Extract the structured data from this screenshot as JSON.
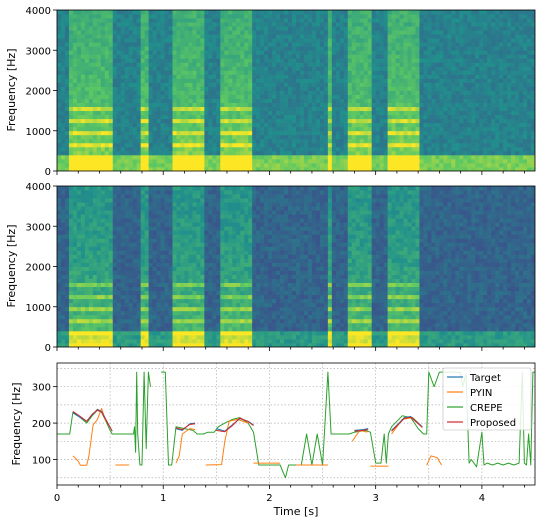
{
  "chart_data": [
    {
      "type": "heatmap",
      "ylabel": "Frequency [Hz]",
      "ylim": [
        0,
        4000
      ],
      "xlim": [
        0,
        4.5
      ],
      "yticks": [
        0,
        1000,
        2000,
        3000,
        4000
      ],
      "xticks": [
        0,
        1,
        2,
        3,
        4
      ],
      "colormap": "viridis",
      "voiced_segments": [
        [
          0.12,
          0.52
        ],
        [
          0.78,
          0.86
        ],
        [
          1.08,
          1.4
        ],
        [
          1.55,
          1.85
        ],
        [
          2.55,
          2.6
        ],
        [
          2.75,
          2.95
        ],
        [
          3.12,
          3.42
        ]
      ]
    },
    {
      "type": "heatmap",
      "ylabel": "Frequency [Hz]",
      "ylim": [
        0,
        4000
      ],
      "xlim": [
        0,
        4.5
      ],
      "yticks": [
        0,
        1000,
        2000,
        3000,
        4000
      ],
      "xticks": [
        0,
        1,
        2,
        3,
        4
      ],
      "colormap": "viridis",
      "voiced_segments": [
        [
          0.12,
          0.52
        ],
        [
          0.78,
          0.86
        ],
        [
          1.08,
          1.4
        ],
        [
          1.55,
          1.85
        ],
        [
          2.55,
          2.6
        ],
        [
          2.75,
          2.95
        ],
        [
          3.12,
          3.42
        ]
      ]
    },
    {
      "type": "line",
      "xlabel": "Time [s]",
      "ylabel": "Frequency [Hz]",
      "xlim": [
        0,
        4.5
      ],
      "ylim": [
        30,
        365
      ],
      "xticks": [
        0,
        1,
        2,
        3,
        4
      ],
      "yticks": [
        100,
        200,
        300
      ],
      "grid": true,
      "legend_position": "top-right",
      "series": [
        {
          "name": "Target",
          "color": "#1f77b4",
          "segments": [
            [
              [
                0.15,
                228
              ],
              [
                0.22,
                215
              ],
              [
                0.28,
                205
              ],
              [
                0.33,
                222
              ],
              [
                0.38,
                238
              ],
              [
                0.42,
                232
              ],
              [
                0.47,
                205
              ],
              [
                0.52,
                178
              ]
            ],
            [
              [
                1.12,
                185
              ],
              [
                1.18,
                180
              ],
              [
                1.25,
                198
              ],
              [
                1.3,
                200
              ]
            ],
            [
              [
                1.5,
                185
              ],
              [
                1.58,
                178
              ],
              [
                1.65,
                195
              ],
              [
                1.72,
                212
              ],
              [
                1.8,
                205
              ],
              [
                1.85,
                195
              ]
            ],
            [
              [
                2.8,
                180
              ],
              [
                2.88,
                182
              ],
              [
                2.93,
                185
              ]
            ],
            [
              [
                3.15,
                180
              ],
              [
                3.22,
                200
              ],
              [
                3.27,
                215
              ],
              [
                3.33,
                218
              ],
              [
                3.4,
                200
              ],
              [
                3.44,
                190
              ]
            ]
          ]
        },
        {
          "name": "PYIN",
          "color": "#ff7f0e",
          "segments": [
            [
              [
                0.15,
                110
              ],
              [
                0.17,
                105
              ],
              [
                0.2,
                95
              ],
              [
                0.22,
                84
              ],
              [
                0.28,
                84
              ],
              [
                0.3,
                110
              ],
              [
                0.34,
                195
              ],
              [
                0.38,
                210
              ],
              [
                0.42,
                240
              ],
              [
                0.46,
                205
              ]
            ],
            [
              [
                0.55,
                85
              ],
              [
                0.68,
                85
              ]
            ],
            [
              [
                1.12,
                90
              ],
              [
                1.15,
                110
              ],
              [
                1.18,
                170
              ],
              [
                1.25,
                185
              ],
              [
                1.3,
                182
              ]
            ],
            [
              [
                1.4,
                85
              ],
              [
                1.55,
                86
              ],
              [
                1.58,
                150
              ],
              [
                1.62,
                205
              ],
              [
                1.7,
                210
              ],
              [
                1.8,
                200
              ]
            ],
            [
              [
                1.85,
                90
              ],
              [
                2.1,
                90
              ]
            ],
            [
              [
                2.25,
                85
              ],
              [
                2.55,
                85
              ]
            ],
            [
              [
                2.78,
                150
              ],
              [
                2.85,
                180
              ],
              [
                2.92,
                175
              ]
            ],
            [
              [
                2.95,
                82
              ],
              [
                3.12,
                82
              ]
            ],
            [
              [
                3.15,
                170
              ],
              [
                3.25,
                210
              ],
              [
                3.35,
                215
              ],
              [
                3.42,
                195
              ]
            ],
            [
              [
                3.48,
                84
              ],
              [
                3.52,
                110
              ],
              [
                3.58,
                105
              ],
              [
                3.62,
                85
              ]
            ]
          ]
        },
        {
          "name": "CREPE",
          "color": "#2ca02c",
          "segments": [
            [
              [
                0.0,
                170
              ],
              [
                0.12,
                170
              ],
              [
                0.15,
                230
              ],
              [
                0.22,
                215
              ],
              [
                0.28,
                200
              ],
              [
                0.33,
                220
              ],
              [
                0.38,
                235
              ],
              [
                0.42,
                230
              ],
              [
                0.46,
                205
              ],
              [
                0.5,
                180
              ],
              [
                0.52,
                170
              ],
              [
                0.72,
                170
              ],
              [
                0.73,
                190
              ],
              [
                0.74,
                120
              ],
              [
                0.75,
                340
              ],
              [
                0.76,
                170
              ],
              [
                0.78,
                85
              ],
              [
                0.8,
                85
              ],
              [
                0.82,
                340
              ],
              [
                0.84,
                130
              ],
              [
                0.86,
                340
              ],
              [
                0.88,
                300
              ]
            ],
            [
              [
                0.98,
                340
              ],
              [
                1.02,
                340
              ],
              [
                1.05,
                85
              ],
              [
                1.08,
                85
              ],
              [
                1.12,
                190
              ],
              [
                1.2,
                185
              ],
              [
                1.28,
                180
              ],
              [
                1.32,
                170
              ],
              [
                1.38,
                170
              ],
              [
                1.42,
                175
              ],
              [
                1.48,
                175
              ],
              [
                1.52,
                190
              ],
              [
                1.58,
                200
              ],
              [
                1.65,
                210
              ],
              [
                1.72,
                215
              ],
              [
                1.8,
                200
              ],
              [
                1.85,
                175
              ],
              [
                1.9,
                85
              ],
              [
                2.0,
                85
              ],
              [
                2.05,
                85
              ],
              [
                2.1,
                85
              ],
              [
                2.15,
                50
              ],
              [
                2.18,
                85
              ],
              [
                2.3,
                85
              ],
              [
                2.35,
                170
              ],
              [
                2.4,
                85
              ],
              [
                2.45,
                170
              ],
              [
                2.5,
                85
              ],
              [
                2.55,
                340
              ],
              [
                2.58,
                170
              ],
              [
                2.65,
                170
              ],
              [
                2.75,
                170
              ],
              [
                2.8,
                175
              ],
              [
                2.9,
                180
              ],
              [
                2.95,
                175
              ],
              [
                3.0,
                90
              ],
              [
                3.05,
                90
              ],
              [
                3.08,
                170
              ],
              [
                3.1,
                90
              ],
              [
                3.12,
                170
              ],
              [
                3.15,
                190
              ],
              [
                3.25,
                220
              ],
              [
                3.33,
                215
              ],
              [
                3.4,
                185
              ],
              [
                3.45,
                170
              ],
              [
                3.48,
                170
              ],
              [
                3.5,
                340
              ],
              [
                3.55,
                300
              ],
              [
                3.6,
                340
              ],
              [
                3.65,
                340
              ],
              [
                3.7,
                340
              ],
              [
                3.75,
                340
              ],
              [
                3.8,
                338
              ],
              [
                3.82,
                300
              ],
              [
                3.85,
                335
              ],
              [
                3.88,
                90
              ],
              [
                3.9,
                100
              ],
              [
                3.95,
                80
              ],
              [
                4.0,
                175
              ],
              [
                4.02,
                85
              ],
              [
                4.05,
                90
              ],
              [
                4.1,
                85
              ],
              [
                4.15,
                90
              ],
              [
                4.2,
                85
              ],
              [
                4.25,
                90
              ],
              [
                4.3,
                85
              ],
              [
                4.35,
                90
              ],
              [
                4.38,
                340
              ],
              [
                4.4,
                90
              ],
              [
                4.42,
                85
              ],
              [
                4.44,
                170
              ],
              [
                4.46,
                85
              ],
              [
                4.48,
                340
              ],
              [
                4.5,
                340
              ]
            ]
          ]
        },
        {
          "name": "Proposed",
          "color": "#d62728",
          "segments": [
            [
              [
                0.15,
                232
              ],
              [
                0.22,
                218
              ],
              [
                0.28,
                205
              ],
              [
                0.33,
                224
              ],
              [
                0.38,
                236
              ],
              [
                0.42,
                230
              ],
              [
                0.47,
                204
              ],
              [
                0.52,
                178
              ]
            ],
            [
              [
                1.12,
                187
              ],
              [
                1.18,
                182
              ],
              [
                1.25,
                196
              ],
              [
                1.3,
                198
              ]
            ],
            [
              [
                1.5,
                180
              ],
              [
                1.58,
                176
              ],
              [
                1.65,
                193
              ],
              [
                1.72,
                214
              ],
              [
                1.8,
                204
              ],
              [
                1.85,
                193
              ]
            ],
            [
              [
                2.8,
                178
              ],
              [
                2.88,
                180
              ],
              [
                2.93,
                182
              ]
            ],
            [
              [
                3.15,
                178
              ],
              [
                3.22,
                198
              ],
              [
                3.27,
                213
              ],
              [
                3.33,
                216
              ],
              [
                3.4,
                198
              ],
              [
                3.44,
                188
              ]
            ]
          ]
        }
      ]
    }
  ]
}
